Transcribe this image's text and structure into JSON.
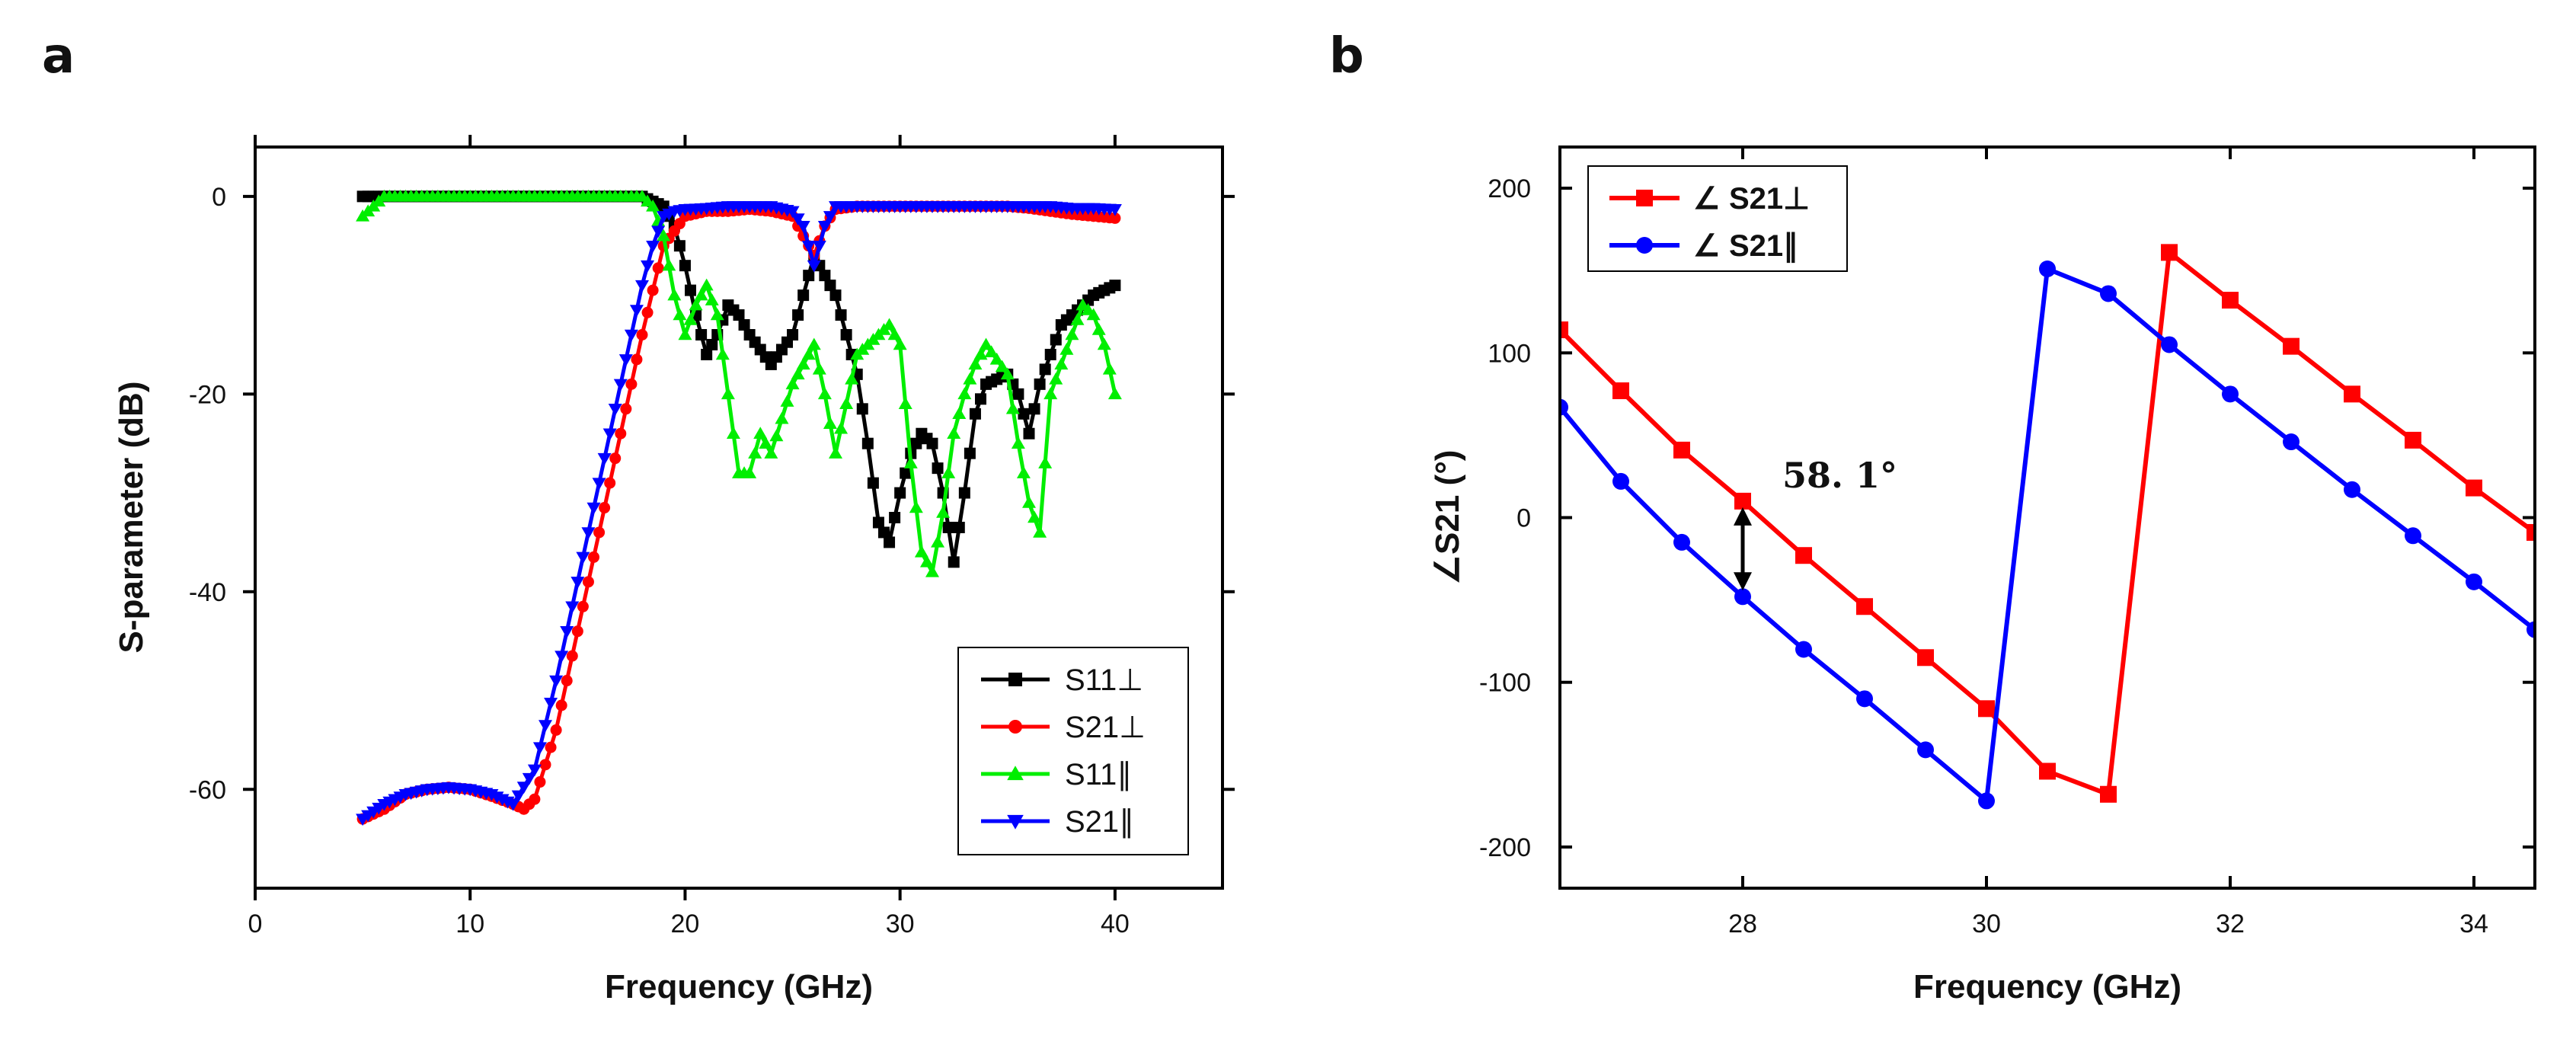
{
  "panel_a_letter": "a",
  "panel_b_letter": "b",
  "chart_data": [
    {
      "type": "line",
      "panel": "a",
      "title": "",
      "xlabel": "Frequency (GHz)",
      "ylabel": "S-parameter (dB)",
      "xlim": [
        0,
        45
      ],
      "ylim": [
        -70,
        5
      ],
      "xticks": [
        0,
        10,
        20,
        30,
        40
      ],
      "yticks": [
        0,
        -20,
        -40,
        -60
      ],
      "grid": false,
      "legend_position": "bottom-right",
      "series": [
        {
          "name": "S11⊥",
          "color": "#000000",
          "marker": "square",
          "x": [
            5,
            6,
            7,
            8,
            9,
            10,
            11,
            12,
            13,
            14,
            15,
            16,
            17,
            18,
            19,
            19.5,
            20,
            20.5,
            21,
            21.5,
            22,
            22.5,
            23,
            24,
            25,
            26,
            27,
            28,
            28.5,
            29,
            29.5,
            30,
            30.5,
            31,
            31.5,
            32,
            32.5,
            33,
            33.5,
            34,
            35,
            35.5,
            36,
            36.5,
            37,
            37.5,
            38,
            39,
            40
          ],
          "y": [
            0,
            0,
            0,
            0,
            0,
            0,
            0,
            0,
            0,
            0,
            0,
            0,
            0,
            0,
            -1,
            -3,
            -7,
            -12,
            -16,
            -14,
            -11,
            -12,
            -14,
            -17,
            -14,
            -6,
            -10,
            -18,
            -25,
            -33,
            -35,
            -30,
            -26,
            -24,
            -25,
            -30,
            -37,
            -30,
            -22,
            -19,
            -18,
            -20,
            -24,
            -19,
            -16,
            -13,
            -12,
            -10,
            -9
          ]
        },
        {
          "name": "S21⊥",
          "color": "#ff0000",
          "marker": "circle",
          "x": [
            5,
            6,
            7,
            8,
            9,
            10,
            11,
            12,
            12.5,
            13,
            14,
            15,
            16,
            17,
            18,
            19,
            20,
            21,
            22,
            23,
            24,
            25,
            25.5,
            26,
            26.5,
            27,
            28,
            29,
            30,
            31,
            32,
            33,
            34,
            35,
            36,
            37,
            38,
            39,
            40
          ],
          "y": [
            -63,
            -62,
            -60.5,
            -60,
            -59.8,
            -60,
            -60.7,
            -61.5,
            -62,
            -61,
            -54,
            -44,
            -34,
            -24,
            -14,
            -5,
            -2,
            -1.5,
            -1.5,
            -1.3,
            -1.5,
            -2,
            -4,
            -6,
            -3,
            -1.3,
            -1,
            -1,
            -1,
            -1,
            -1,
            -1,
            -1,
            -1,
            -1.2,
            -1.5,
            -1.8,
            -2,
            -2.2
          ]
        },
        {
          "name": "S11∥",
          "color": "#00ee00",
          "marker": "triangle-up",
          "x": [
            5,
            6,
            7,
            8,
            9,
            10,
            11,
            12,
            13,
            14,
            15,
            16,
            17,
            18,
            18.5,
            19,
            19.5,
            20,
            20.5,
            21,
            21.5,
            22,
            22.5,
            23,
            23.5,
            24,
            25,
            26,
            26.5,
            27,
            28,
            29,
            29.5,
            30,
            30.5,
            31,
            31.5,
            32,
            32.5,
            33,
            33.5,
            34,
            35,
            35.5,
            36,
            36.5,
            37,
            38,
            38.5,
            39,
            39.5,
            40
          ],
          "y": [
            -2,
            0,
            0,
            0,
            0,
            0,
            0,
            0,
            0,
            0,
            0,
            0,
            0,
            0,
            -1,
            -4,
            -10,
            -14,
            -11,
            -9,
            -12,
            -20,
            -28,
            -28,
            -24,
            -26,
            -19,
            -15,
            -20,
            -26,
            -16,
            -14,
            -13,
            -15,
            -27,
            -36,
            -38,
            -32,
            -24,
            -20,
            -17,
            -15,
            -18,
            -25,
            -31,
            -34,
            -20,
            -14,
            -11,
            -12,
            -15,
            -20
          ]
        },
        {
          "name": "S21∥",
          "color": "#0000ff",
          "marker": "triangle-down",
          "x": [
            5,
            6,
            7,
            8,
            9,
            10,
            11,
            12,
            13,
            14,
            15,
            16,
            17,
            18,
            18.5,
            19,
            19.5,
            20,
            21,
            22,
            23,
            24,
            25,
            25.5,
            26,
            26.5,
            27,
            28,
            29,
            30,
            31,
            32,
            33,
            34,
            35,
            36,
            37,
            38,
            39,
            40
          ],
          "y": [
            -63,
            -61.5,
            -60.5,
            -60,
            -59.8,
            -60,
            -60.5,
            -61.5,
            -58,
            -49,
            -39,
            -29,
            -19,
            -9,
            -5,
            -2,
            -1.5,
            -1.3,
            -1.2,
            -1,
            -1,
            -1,
            -1.5,
            -3,
            -7,
            -3,
            -1,
            -1,
            -1,
            -1,
            -1,
            -1,
            -1,
            -1,
            -1,
            -1,
            -1,
            -1.2,
            -1.2,
            -1.3
          ]
        }
      ]
    },
    {
      "type": "line",
      "panel": "b",
      "title": "",
      "xlabel": "Frequency (GHz)",
      "ylabel": "∠S21 (°)",
      "xlim": [
        26.5,
        34.5
      ],
      "ylim": [
        -225,
        225
      ],
      "xticks": [
        28,
        30,
        32,
        34
      ],
      "yticks": [
        200,
        100,
        0,
        -100,
        -200
      ],
      "grid": false,
      "legend_position": "top-left",
      "series": [
        {
          "name": "∠ S21⊥",
          "color": "#ff0000",
          "marker": "square",
          "x": [
            26.5,
            27,
            27.5,
            28,
            28.5,
            29,
            29.5,
            30,
            30.5,
            31,
            31.5,
            32,
            32.5,
            33,
            33.5,
            34,
            34.5
          ],
          "y": [
            114,
            77,
            41,
            10,
            -23,
            -54,
            -85,
            -116,
            -154,
            -168,
            161,
            132,
            104,
            75,
            47,
            18,
            -9
          ]
        },
        {
          "name": "∠ S21∥",
          "color": "#0000ff",
          "marker": "circle",
          "x": [
            26.5,
            27,
            27.5,
            28,
            28.5,
            29,
            29.5,
            30,
            30.5,
            31,
            31.5,
            32,
            32.5,
            33,
            33.5,
            34,
            34.5
          ],
          "y": [
            67,
            22,
            -15,
            -48,
            -80,
            -110,
            -141,
            -172,
            151,
            136,
            105,
            75,
            46,
            17,
            -11,
            -39,
            -68
          ]
        }
      ],
      "annotations": [
        {
          "text": "58. 1°",
          "x": 28,
          "y_from": 10,
          "y_to": -48
        }
      ]
    }
  ]
}
